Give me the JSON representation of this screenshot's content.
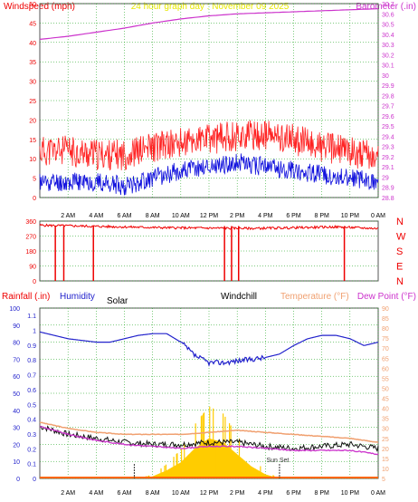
{
  "title": "24 hour graph day : November 09 2025",
  "colors": {
    "wind": "#ee0000",
    "gust": "#ff2222",
    "avg": "#1111dd",
    "baro": "#cc33cc",
    "humidity": "#2222cc",
    "temp": "#f0a070",
    "dew": "#cc33cc",
    "chill": "#111111",
    "solar": "#ffcc00",
    "rain": "#ff6600",
    "grid": "#009900",
    "title": "#e8e800",
    "axis_black": "#000000"
  },
  "chart_data": [
    {
      "type": "line",
      "panel": "wind-baro",
      "legend_left": "Windspeed (mph)",
      "legend_right": "Barometer (.in)",
      "y_left": {
        "min": 0,
        "max": 50,
        "ticks": [
          "0",
          "5",
          "10",
          "15",
          "20",
          "25",
          "30",
          "35",
          "40",
          "45",
          "50"
        ]
      },
      "y_right": {
        "min": 28.8,
        "max": 30.7,
        "ticks": [
          "28.8",
          "28.9",
          "29",
          "29.1",
          "29.2",
          "29.3",
          "29.4",
          "29.5",
          "29.6",
          "29.7",
          "29.8",
          "29.9",
          "30",
          "30.1",
          "30.2",
          "30.3",
          "30.4",
          "30.5",
          "30.6",
          "30.7"
        ]
      },
      "x_ticks": [
        "2 AM",
        "4 AM",
        "6 AM",
        "8 AM",
        "10 AM",
        "12 PM",
        "2 PM",
        "4 PM",
        "6 PM",
        "8 PM",
        "10 PM",
        "0 AM"
      ],
      "series": [
        {
          "name": "Barometer",
          "hours": [
            0,
            2,
            4,
            6,
            8,
            10,
            12,
            14,
            16,
            18,
            20,
            22,
            24
          ],
          "values": [
            30.35,
            30.38,
            30.42,
            30.46,
            30.51,
            30.55,
            30.58,
            30.6,
            30.61,
            30.62,
            30.63,
            30.64,
            30.65
          ]
        },
        {
          "name": "Gust",
          "hours": [
            0,
            2,
            4,
            6,
            8,
            10,
            12,
            14,
            16,
            18,
            20,
            22,
            24
          ],
          "values": [
            12,
            12,
            11,
            11,
            13,
            14,
            15,
            16,
            16,
            15,
            13,
            12,
            10
          ]
        },
        {
          "name": "Average",
          "hours": [
            0,
            2,
            4,
            6,
            8,
            10,
            12,
            14,
            16,
            18,
            20,
            22,
            24
          ],
          "values": [
            4,
            4,
            4,
            3,
            5,
            7,
            8,
            9,
            8,
            7,
            6,
            5,
            4
          ]
        }
      ]
    },
    {
      "type": "line",
      "panel": "direction",
      "y_ticks": [
        "0",
        "90",
        "180",
        "270",
        "360"
      ],
      "compass": [
        "N",
        "W",
        "S",
        "E",
        "N"
      ],
      "series": [
        {
          "name": "Direction",
          "hours": [
            0,
            3,
            6,
            9,
            12,
            15,
            18,
            21,
            24
          ],
          "values": [
            335,
            330,
            325,
            320,
            318,
            316,
            320,
            325,
            315
          ]
        }
      ],
      "north_drops_hours": [
        1.1,
        1.7,
        3.8,
        13.1,
        13.6,
        14.1,
        21.6
      ]
    },
    {
      "type": "line",
      "panel": "temp-hum-solar",
      "legend": [
        "Rainfall (.in)",
        "Humidity",
        "Solar",
        "Windchill",
        "Temperature (°F)",
        "Dew Point (°F)"
      ],
      "y_left": {
        "min": 0,
        "max": 1.15,
        "ticks": [
          "0",
          "0.1",
          "0.2",
          "0.3",
          "0.4",
          "0.5",
          "0.6",
          "0.7",
          "0.8",
          "0.9",
          "1",
          "1.1"
        ]
      },
      "y_left2": {
        "min": 0,
        "max": 100,
        "ticks": [
          "0",
          "10",
          "20",
          "30",
          "40",
          "50",
          "60",
          "70",
          "80",
          "90",
          "100"
        ]
      },
      "y_right": {
        "min": 5,
        "max": 90,
        "ticks": [
          "5",
          "10",
          "15",
          "20",
          "25",
          "30",
          "35",
          "40",
          "45",
          "50",
          "55",
          "60",
          "65",
          "70",
          "75",
          "80",
          "85",
          "90"
        ]
      },
      "x_ticks": [
        "2 AM",
        "4 AM",
        "6 AM",
        "8 AM",
        "10 AM",
        "12 PM",
        "2 PM",
        "4 PM",
        "6 PM",
        "8 PM",
        "10 PM",
        "0 AM"
      ],
      "annotations": [
        "Sun Set"
      ],
      "sunrise_hour": 6.7,
      "sunset_hour": 17.0,
      "series": [
        {
          "name": "Humidity",
          "hours": [
            0,
            1,
            2,
            3,
            4,
            5,
            6,
            7,
            8,
            9,
            10,
            11,
            12,
            13,
            14,
            15,
            16,
            17,
            18,
            19,
            20,
            21,
            22,
            23,
            24
          ],
          "values": [
            86,
            84,
            82,
            81,
            80,
            80,
            82,
            84,
            85,
            85,
            80,
            72,
            68,
            68,
            69,
            70,
            71,
            73,
            78,
            82,
            84,
            84,
            82,
            78,
            80
          ]
        },
        {
          "name": "Temperature",
          "hours": [
            0,
            2,
            4,
            6,
            8,
            10,
            12,
            14,
            16,
            18,
            20,
            22,
            24
          ],
          "values": [
            33,
            30,
            28,
            27,
            27,
            27,
            28,
            29,
            28,
            27,
            26,
            25,
            23
          ]
        },
        {
          "name": "Dew Point",
          "hours": [
            0,
            2,
            4,
            6,
            8,
            10,
            12,
            14,
            16,
            18,
            20,
            22,
            24
          ],
          "values": [
            31,
            27,
            24,
            22,
            21,
            20,
            21,
            21,
            20,
            19,
            19,
            19,
            17
          ]
        },
        {
          "name": "Windchill",
          "hours": [
            0,
            2,
            4,
            6,
            8,
            10,
            12,
            14,
            16,
            18,
            20,
            22,
            24
          ],
          "values": [
            31,
            27,
            25,
            23,
            22,
            22,
            23,
            23,
            21,
            20,
            21,
            22,
            20
          ]
        },
        {
          "name": "Solar",
          "hours": [
            6.7,
            8,
            9,
            10,
            11,
            12,
            13,
            14,
            15,
            16,
            17
          ],
          "values": [
            0,
            1,
            4,
            8,
            15,
            20,
            18,
            12,
            6,
            2,
            0
          ]
        },
        {
          "name": "Rainfall",
          "hours": [
            0,
            24
          ],
          "values": [
            0,
            0
          ]
        }
      ]
    }
  ]
}
